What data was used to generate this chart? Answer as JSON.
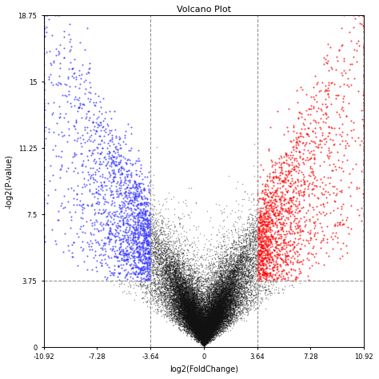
{
  "title": "Volcano Plot",
  "xlabel": "log2(FoldChange)",
  "ylabel": "-log2(P-value)",
  "xlim": [
    -10.92,
    10.92
  ],
  "ylim": [
    0,
    18.75
  ],
  "xticks": [
    -10.92,
    -7.28,
    -3.64,
    0,
    3.64,
    7.28,
    10.92
  ],
  "yticks": [
    0,
    3.75,
    7.5,
    11.25,
    15,
    18.75
  ],
  "hline_y": 3.75,
  "vline_x1": -3.64,
  "vline_x2": 3.64,
  "fc_threshold": 3.64,
  "pval_threshold": 3.75,
  "n_points": 30000,
  "color_up": "#FF0000",
  "color_down": "#3333FF",
  "color_ns": "#111111",
  "point_size": 1.2,
  "background_color": "#ffffff",
  "title_fontsize": 8,
  "label_fontsize": 7,
  "tick_fontsize": 6
}
